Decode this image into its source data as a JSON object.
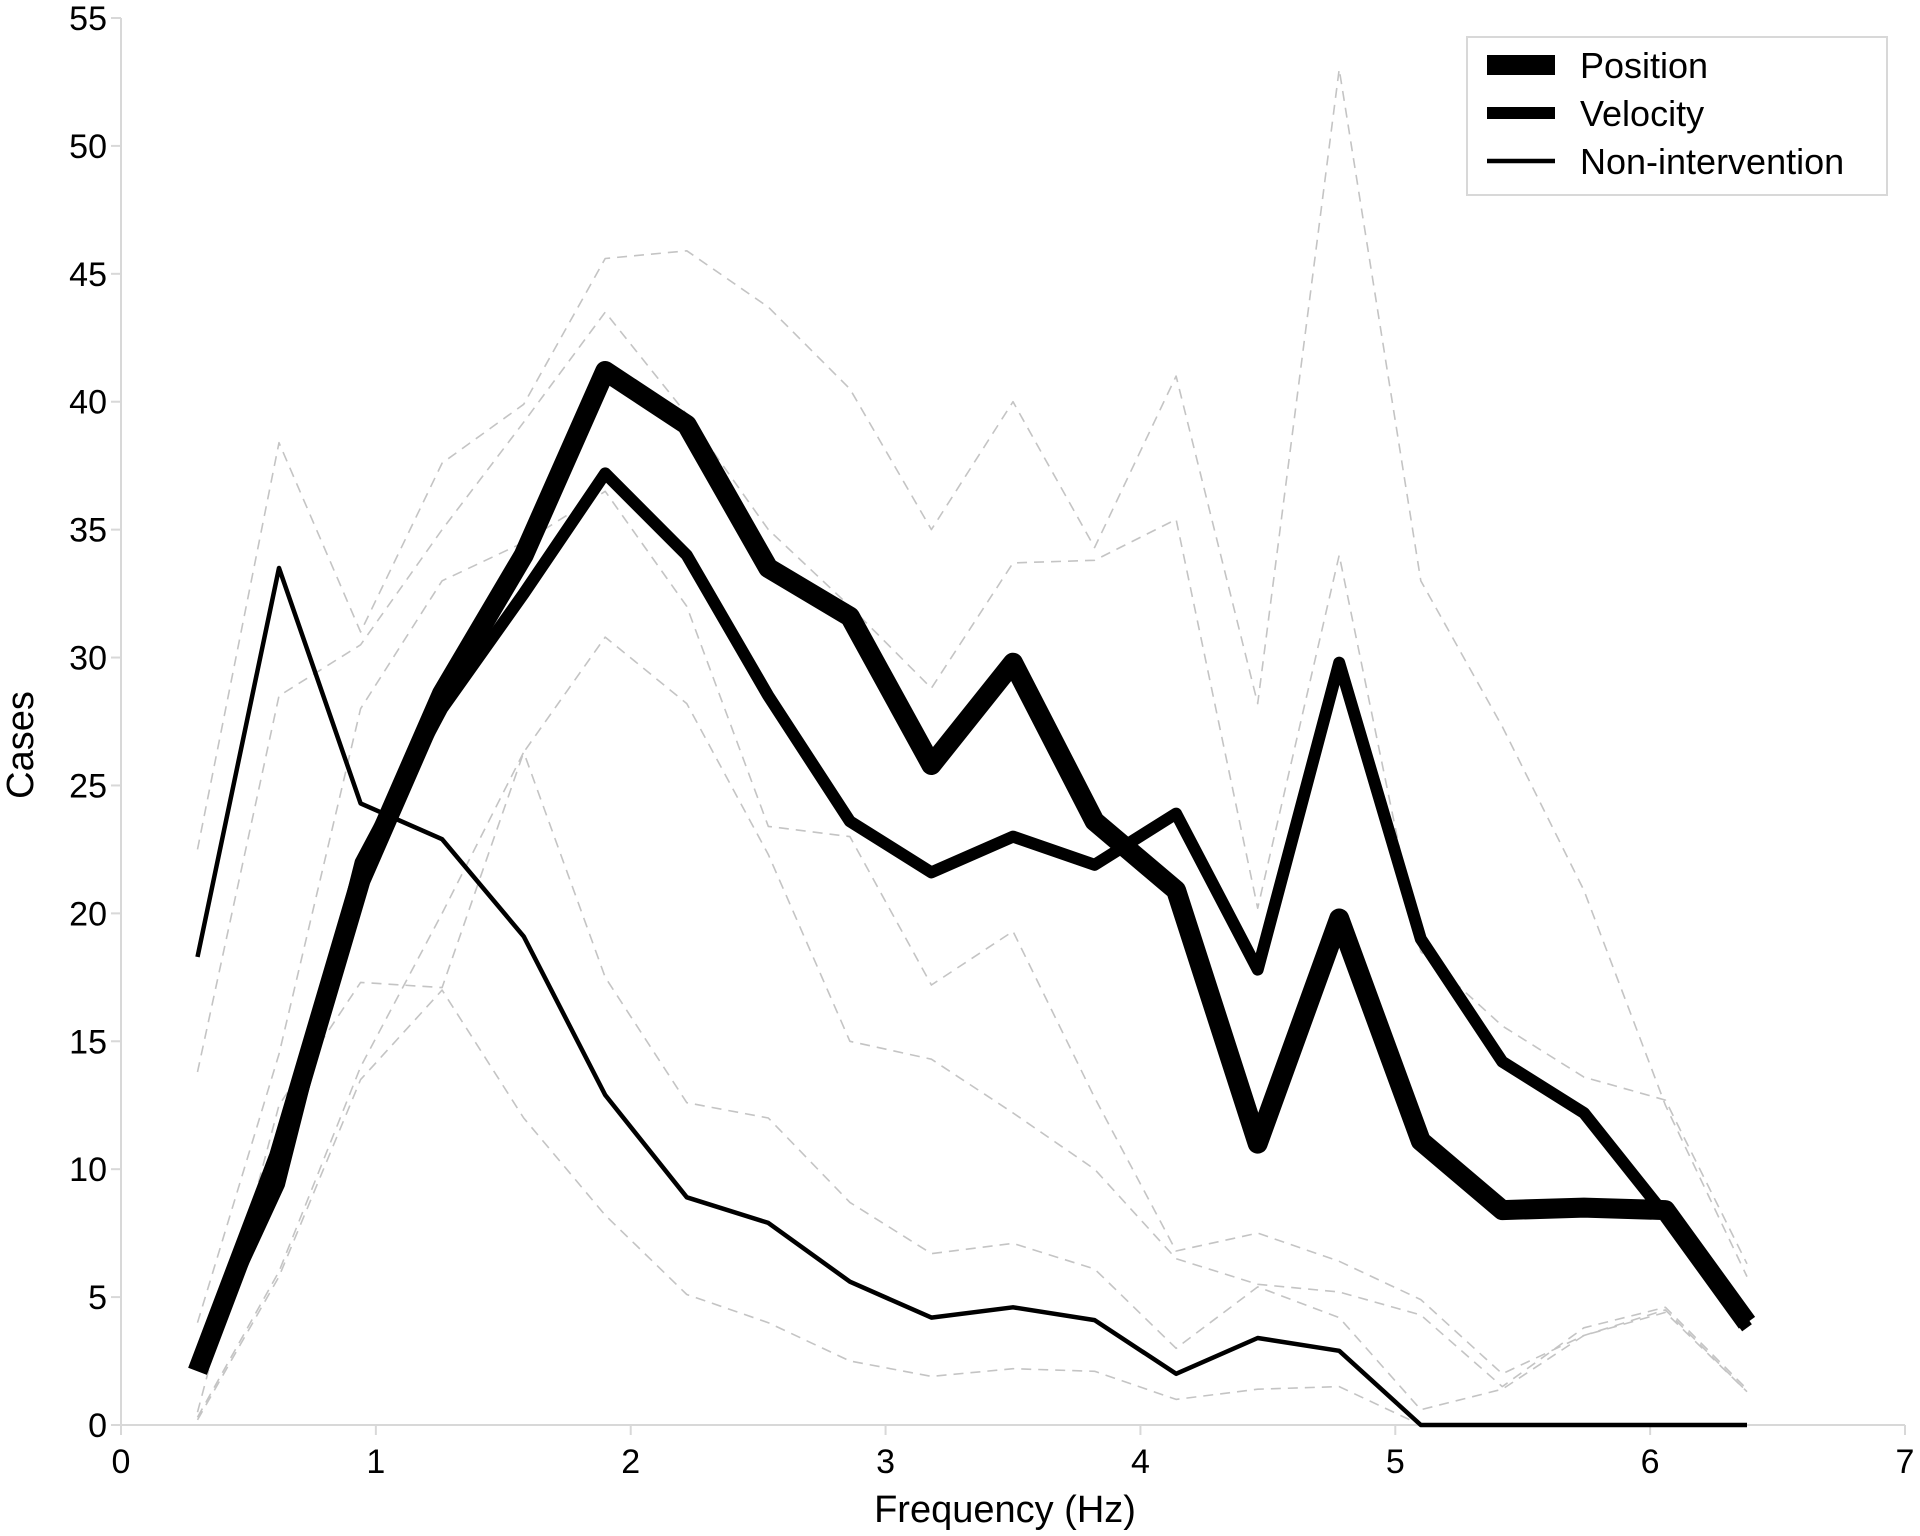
{
  "chart_data": {
    "type": "line",
    "title": "",
    "xlabel": "Frequency (Hz)",
    "ylabel": "Cases",
    "xlim": [
      0,
      7
    ],
    "ylim": [
      0,
      55
    ],
    "xticks": [
      "0",
      "1",
      "2",
      "3",
      "4",
      "5",
      "6",
      "7"
    ],
    "yticks": [
      "0",
      "5",
      "10",
      "15",
      "20",
      "25",
      "30",
      "35",
      "40",
      "45",
      "50",
      "55"
    ],
    "grid": false,
    "legend_position": "top-right",
    "x": [
      0.3,
      0.62,
      0.94,
      1.26,
      1.58,
      1.9,
      2.22,
      2.54,
      2.86,
      3.18,
      3.5,
      3.82,
      4.14,
      4.46,
      4.78,
      5.1,
      5.42,
      5.74,
      6.06,
      6.38
    ],
    "series": [
      {
        "name": "Position",
        "style": "thick",
        "values": [
          2.1,
          10.5,
          21.3,
          28.6,
          34.0,
          41.2,
          39.1,
          33.5,
          31.6,
          25.8,
          29.8,
          23.6,
          20.9,
          11.0,
          19.8,
          11.1,
          8.4,
          8.5,
          8.4,
          4.0
        ]
      },
      {
        "name": "Velocity",
        "style": "medium",
        "values": [
          2.5,
          9.4,
          22.0,
          28.0,
          32.5,
          37.2,
          34.0,
          28.5,
          23.6,
          21.6,
          23.0,
          21.9,
          23.9,
          17.8,
          29.8,
          19.0,
          14.2,
          12.2,
          8.2,
          3.8
        ]
      },
      {
        "name": "Non-intervention",
        "style": "thin",
        "values": [
          18.3,
          33.5,
          24.3,
          22.9,
          19.1,
          12.9,
          8.9,
          7.9,
          5.6,
          4.2,
          4.6,
          4.1,
          2.0,
          3.4,
          2.9,
          0,
          0,
          0,
          0,
          0
        ]
      },
      {
        "style": "dashed",
        "values": [
          22.5,
          38.4,
          31.0,
          37.6,
          39.9,
          45.6,
          45.9,
          43.7,
          40.5,
          35.0,
          40.0,
          34.3,
          41.0,
          28.2,
          53.0,
          33.0,
          27.3,
          20.9,
          12.5,
          5.8
        ]
      },
      {
        "style": "dashed",
        "values": [
          13.8,
          28.5,
          30.5,
          35.0,
          39.2,
          43.5,
          39.5,
          35.0,
          32.0,
          28.8,
          33.7,
          33.8,
          35.4,
          20.2,
          34.0,
          18.5,
          15.6,
          13.6,
          12.7,
          6.3
        ]
      },
      {
        "style": "dashed",
        "values": [
          4.0,
          14.5,
          28.0,
          33.0,
          34.5,
          36.5,
          32.0,
          23.4,
          23.0,
          17.2,
          19.3,
          12.8,
          6.8,
          7.5,
          6.4,
          4.9,
          2.0,
          3.5,
          4.5,
          1.3
        ]
      },
      {
        "style": "dashed",
        "values": [
          0.5,
          12.5,
          17.3,
          17.1,
          26.3,
          30.8,
          28.2,
          22.3,
          15.0,
          14.3,
          12.2,
          10.0,
          6.5,
          5.5,
          5.2,
          4.3,
          1.5,
          3.8,
          4.6,
          1.4
        ]
      },
      {
        "style": "dashed",
        "values": [
          0.3,
          6.0,
          14.0,
          20.0,
          26.3,
          17.5,
          12.6,
          12.0,
          8.7,
          6.7,
          7.1,
          6.1,
          3.0,
          5.4,
          4.2,
          0.6,
          1.4,
          3.5,
          4.4,
          1.3
        ]
      },
      {
        "style": "dashed",
        "values": [
          0.2,
          5.8,
          13.5,
          17.0,
          12.0,
          8.2,
          5.1,
          4.0,
          2.5,
          1.9,
          2.2,
          2.1,
          1.0,
          1.4,
          1.5,
          0,
          0,
          0,
          0,
          0
        ]
      }
    ],
    "colors": {
      "main": "#000000",
      "dashed": "#c4c4c4"
    }
  }
}
